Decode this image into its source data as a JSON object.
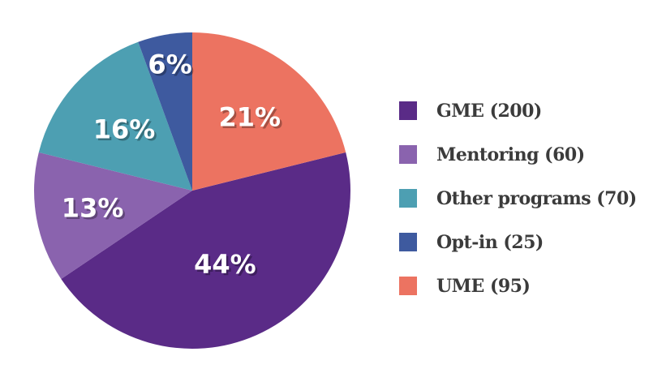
{
  "chart_data": {
    "type": "pie",
    "title": "",
    "legend_position": "right",
    "direction": "clockwise",
    "start_angle_deg": 76,
    "total": 450,
    "pct_label_color": "#ffffff",
    "background_color": "#ffffff",
    "legend_text_color": "#3b3b3b",
    "slices": [
      {
        "label": "GME (200)",
        "name": "gme",
        "value": 200,
        "pct": 44,
        "pct_label": "44%",
        "color": "#5a2b87",
        "label_r": 0.51
      },
      {
        "label": "Mentoring (60)",
        "name": "mentoring",
        "value": 60,
        "pct": 13,
        "pct_label": "13%",
        "color": "#8a63ae",
        "label_r": 0.64
      },
      {
        "label": "Other programs (70)",
        "name": "other-programs",
        "value": 70,
        "pct": 16,
        "pct_label": "16%",
        "color": "#4d9fb2",
        "label_r": 0.58
      },
      {
        "label": "Opt-in (25)",
        "name": "opt-in",
        "value": 25,
        "pct": 6,
        "pct_label": "6%",
        "color": "#3e5a9f",
        "label_r": 0.81
      },
      {
        "label": "UME (95)",
        "name": "ume",
        "value": 95,
        "pct": 21,
        "pct_label": "21%",
        "color": "#ec7361",
        "label_r": 0.59
      }
    ]
  }
}
